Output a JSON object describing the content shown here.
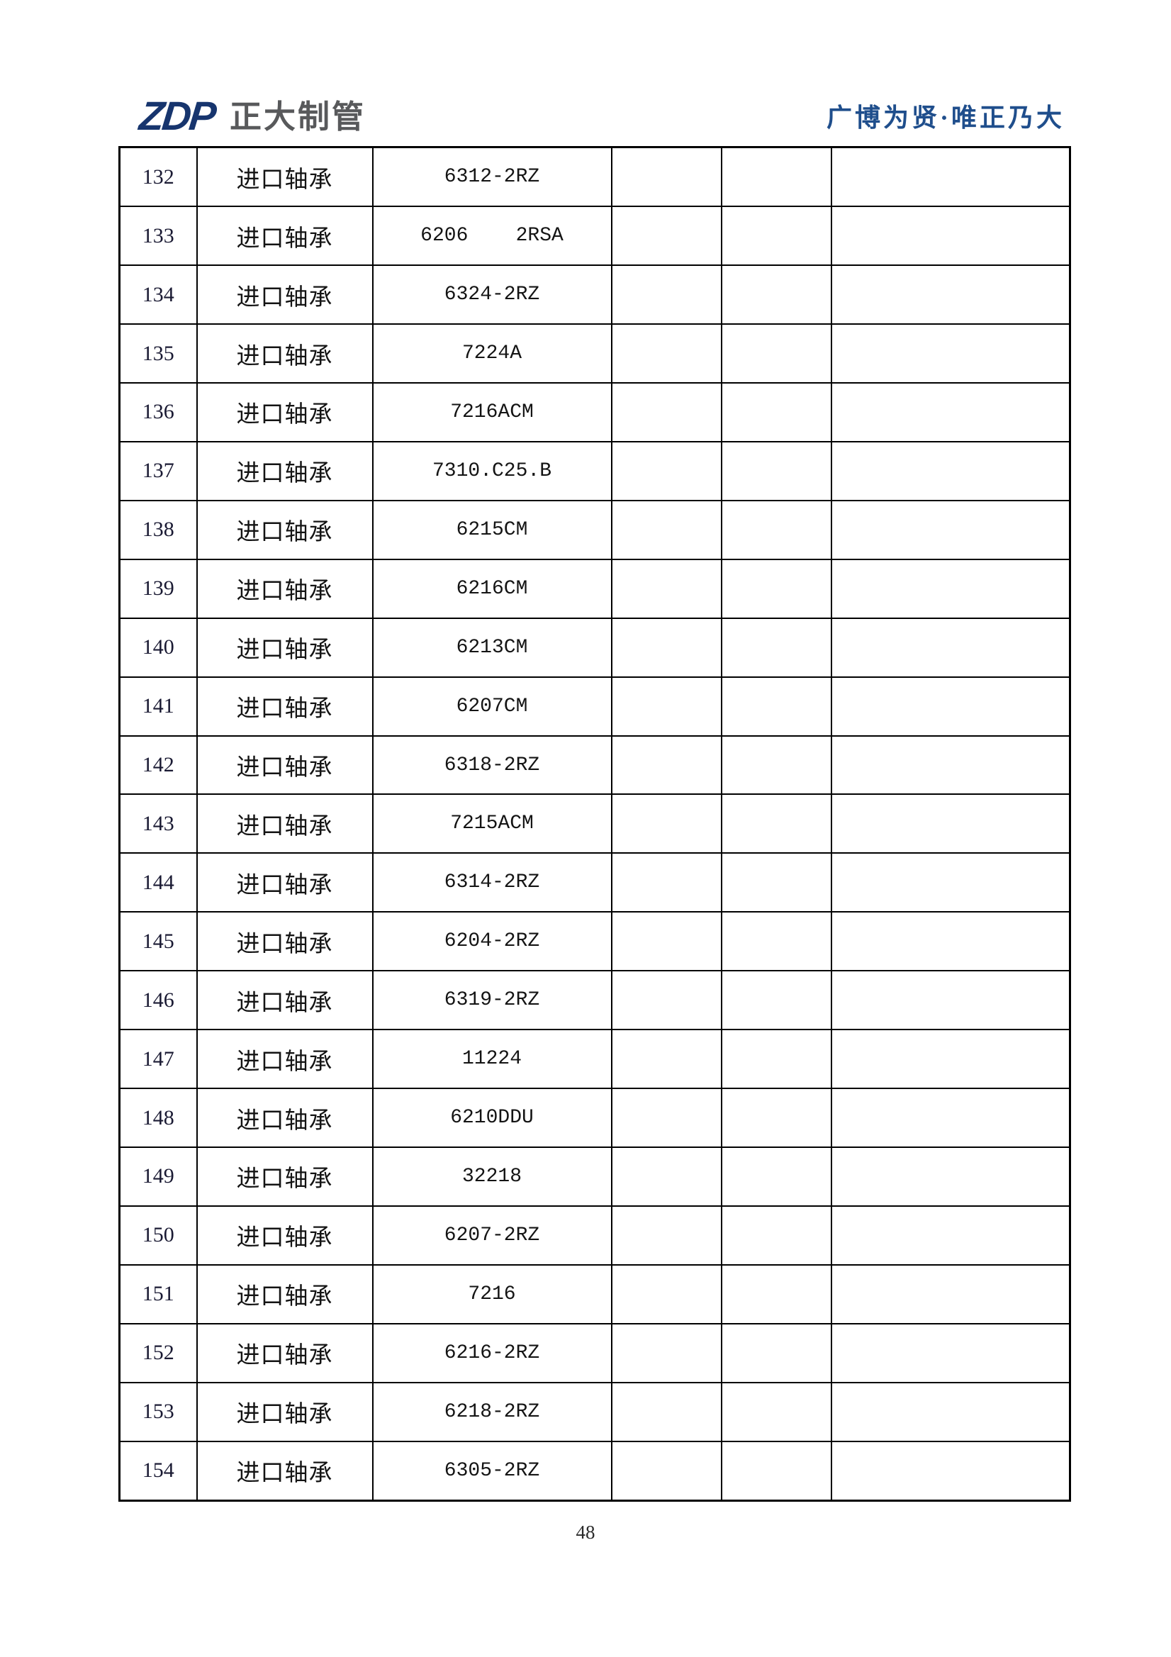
{
  "header": {
    "logo_text": "ZDP",
    "company_name": "正大制管",
    "slogan": "广博为贤·唯正乃大",
    "colors": {
      "logo_navy": "#17356e",
      "company_gray": "#58595b",
      "slogan_blue": "#1f4e8c",
      "table_border": "#000000"
    }
  },
  "table": {
    "rows": [
      {
        "no": "132",
        "name": "进口轴承",
        "model": "6312-2RZ"
      },
      {
        "no": "133",
        "name": "进口轴承",
        "model": "6206    2RSA"
      },
      {
        "no": "134",
        "name": "进口轴承",
        "model": "6324-2RZ"
      },
      {
        "no": "135",
        "name": "进口轴承",
        "model": "7224A"
      },
      {
        "no": "136",
        "name": "进口轴承",
        "model": "7216ACM"
      },
      {
        "no": "137",
        "name": "进口轴承",
        "model": "7310.C25.B"
      },
      {
        "no": "138",
        "name": "进口轴承",
        "model": "6215CM"
      },
      {
        "no": "139",
        "name": "进口轴承",
        "model": "6216CM"
      },
      {
        "no": "140",
        "name": "进口轴承",
        "model": "6213CM"
      },
      {
        "no": "141",
        "name": "进口轴承",
        "model": "6207CM"
      },
      {
        "no": "142",
        "name": "进口轴承",
        "model": "6318-2RZ"
      },
      {
        "no": "143",
        "name": "进口轴承",
        "model": "7215ACM"
      },
      {
        "no": "144",
        "name": "进口轴承",
        "model": "6314-2RZ"
      },
      {
        "no": "145",
        "name": "进口轴承",
        "model": "6204-2RZ"
      },
      {
        "no": "146",
        "name": "进口轴承",
        "model": "6319-2RZ"
      },
      {
        "no": "147",
        "name": "进口轴承",
        "model": "11224"
      },
      {
        "no": "148",
        "name": "进口轴承",
        "model": "6210DDU"
      },
      {
        "no": "149",
        "name": "进口轴承",
        "model": "32218"
      },
      {
        "no": "150",
        "name": "进口轴承",
        "model": "6207-2RZ"
      },
      {
        "no": "151",
        "name": "进口轴承",
        "model": "7216"
      },
      {
        "no": "152",
        "name": "进口轴承",
        "model": "6216-2RZ"
      },
      {
        "no": "153",
        "name": "进口轴承",
        "model": "6218-2RZ"
      },
      {
        "no": "154",
        "name": "进口轴承",
        "model": "6305-2RZ"
      }
    ]
  },
  "footer": {
    "page_number": "48"
  }
}
